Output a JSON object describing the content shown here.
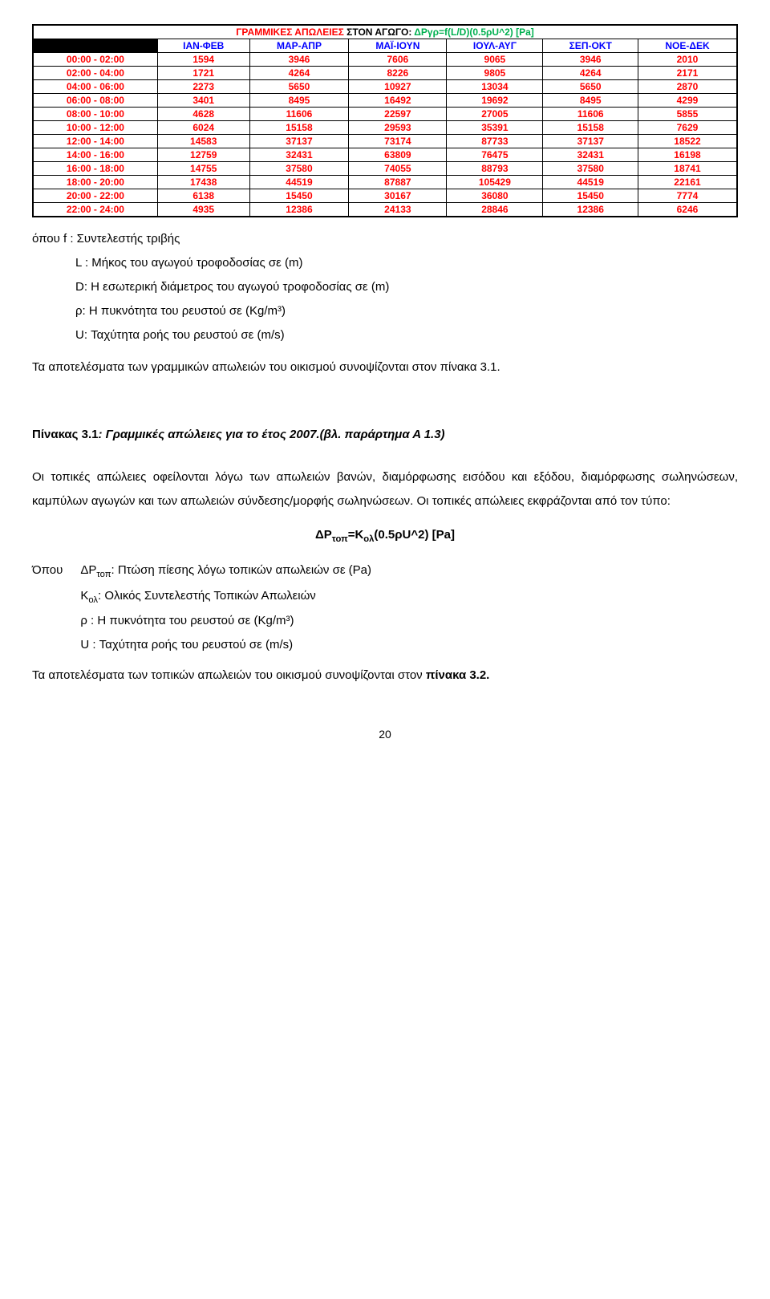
{
  "table": {
    "title_parts": {
      "a": "ΓΡΑΜΜΙΚΕΣ ΑΠΩΛΕΙΕΣ",
      "b": " ΣΤΟΝ ΑΓΩΓΟ: ",
      "c": "ΔΡγρ=f(L/D)(0.5ρU^2) [Pa]"
    },
    "title_colors": {
      "a": "#ff0000",
      "b": "#000000",
      "c": "#00b050"
    },
    "headers": [
      "",
      "ΙΑΝ-ΦΕΒ",
      "ΜΑΡ-ΑΠΡ",
      "ΜΑΪ-ΙΟΥΝ",
      "ΙΟΥΛ-ΑΥΓ",
      "ΣΕΠ-ΟΚΤ",
      "ΝΟΕ-ΔΕΚ"
    ],
    "header_colors": [
      "#000000",
      "#0000ff",
      "#0000ff",
      "#0000ff",
      "#0000ff",
      "#0000ff",
      "#0000ff"
    ],
    "row_labels": [
      "00:00 - 02:00",
      "02:00 - 04:00",
      "04:00 - 06:00",
      "06:00 - 08:00",
      "08:00 - 10:00",
      "10:00 - 12:00",
      "12:00 - 14:00",
      "14:00 - 16:00",
      "16:00 - 18:00",
      "18:00 - 20:00",
      "20:00 - 22:00",
      "22:00 - 24:00"
    ],
    "row_label_color": "#ff0000",
    "cell_color": "#ff0000",
    "rows": [
      [
        1594,
        3946,
        7606,
        9065,
        3946,
        2010
      ],
      [
        1721,
        4264,
        8226,
        9805,
        4264,
        2171
      ],
      [
        2273,
        5650,
        10927,
        13034,
        5650,
        2870
      ],
      [
        3401,
        8495,
        16492,
        19692,
        8495,
        4299
      ],
      [
        4628,
        11606,
        22597,
        27005,
        11606,
        5855
      ],
      [
        6024,
        15158,
        29593,
        35391,
        15158,
        7629
      ],
      [
        14583,
        37137,
        73174,
        87733,
        37137,
        18522
      ],
      [
        12759,
        32431,
        63809,
        76475,
        32431,
        16198
      ],
      [
        14755,
        37580,
        74055,
        88793,
        37580,
        18741
      ],
      [
        17438,
        44519,
        87887,
        105429,
        44519,
        22161
      ],
      [
        6138,
        15450,
        30167,
        36080,
        15450,
        7774
      ],
      [
        4935,
        12386,
        24133,
        28846,
        12386,
        6246
      ]
    ]
  },
  "defs1": {
    "line0": "όπου   f : Συντελεστής τριβής",
    "line1": "L : Μήκος του αγωγού τροφοδοσίας σε (m)",
    "line2": "D: Η εσωτερική διάμετρος του αγωγού τροφοδοσίας σε (m)",
    "line3": "ρ: Η πυκνότητα του ρευστού σε  (Kg/m³)",
    "line4": "U: Ταχύτητα ροής του ρευστού σε (m/s)"
  },
  "para1": "Τα αποτελέσματα των γραμμικών απωλειών του οικισμού συνοψίζονται στον πίνακα 3.1.",
  "caption": {
    "label": "Πίνακας 3.1",
    "rest": ": Γραμμικές απώλειες για το έτος 2007.",
    "ref": "(βλ. παράρτημα Α 1.3)"
  },
  "para2": "Οι τοπικές απώλειες οφείλονται λόγω των απωλειών βανών, διαμόρφωσης εισόδου και εξόδου, διαμόρφωσης σωληνώσεων, καμπύλων αγωγών και των απωλειών σύνδεσης/μορφής σωληνώσεων. Οι τοπικές απώλειες εκφράζονται από τον τύπο:",
  "formula": "ΔΡτοπ=Kολ(0.5ρU^2) [Pa]",
  "defs2": {
    "lead": "Όπου",
    "line1a": "ΔΡ",
    "line1sub": "τοπ",
    "line1b": ": Πτώση πίεσης λόγω τοπικών απωλειών σε (Pa)",
    "line2a": "K",
    "line2sub": "ολ",
    "line2b": ": Ολικός Συντελεστής Τοπικών Απωλειών",
    "line3": "ρ : Η πυκνότητα του ρευστού σε (Kg/m³)",
    "line4": "U : Ταχύτητα ροής του ρευστού σε (m/s)"
  },
  "para3a": "Τα αποτελέσματα των τοπικών απωλειών του οικισμού συνοψίζονται στον ",
  "para3b": "πίνακα 3.2.",
  "page_number": "20"
}
